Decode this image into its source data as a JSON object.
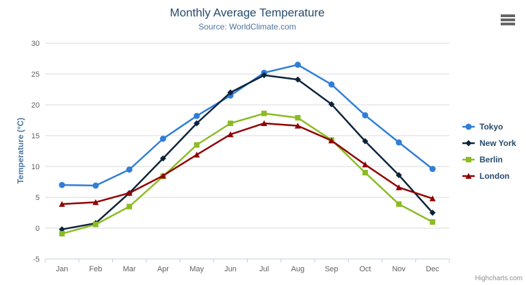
{
  "chart": {
    "credit": "Highcharts.com"
  },
  "icons": {
    "export_menu": "hamburger-icon"
  },
  "colors": {
    "grid": "#d8d8d8",
    "axis_line": "#c0d0e0",
    "tick_label": "#606060",
    "title": "#274b6d",
    "subtitle": "#4d759e",
    "legend_text": "#274b6d",
    "credit": "#909090"
  },
  "chart_data": {
    "type": "line",
    "title": "Monthly Average Temperature",
    "subtitle": "Source: WorldClimate.com",
    "xlabel": "",
    "ylabel": "Temperature (°C)",
    "ylim": [
      -5,
      30
    ],
    "ytick_step": 5,
    "grid": true,
    "legend_position": "right",
    "categories": [
      "Jan",
      "Feb",
      "Mar",
      "Apr",
      "May",
      "Jun",
      "Jul",
      "Aug",
      "Sep",
      "Oct",
      "Nov",
      "Dec"
    ],
    "series": [
      {
        "name": "Tokyo",
        "color": "#2f7ed8",
        "marker": "circle",
        "values": [
          7.0,
          6.9,
          9.5,
          14.5,
          18.2,
          21.5,
          25.2,
          26.5,
          23.3,
          18.3,
          13.9,
          9.6
        ]
      },
      {
        "name": "New York",
        "color": "#0d233a",
        "marker": "diamond",
        "values": [
          -0.2,
          0.8,
          5.7,
          11.3,
          17.0,
          22.0,
          24.8,
          24.1,
          20.1,
          14.1,
          8.6,
          2.5
        ]
      },
      {
        "name": "Berlin",
        "color": "#8bbc21",
        "marker": "square",
        "values": [
          -0.9,
          0.6,
          3.5,
          8.4,
          13.5,
          17.0,
          18.6,
          17.9,
          14.3,
          9.0,
          3.9,
          1.0
        ]
      },
      {
        "name": "London",
        "color": "#910000",
        "marker": "triangle",
        "values": [
          3.9,
          4.2,
          5.7,
          8.5,
          11.9,
          15.2,
          17.0,
          16.6,
          14.2,
          10.3,
          6.6,
          4.8
        ]
      }
    ]
  }
}
